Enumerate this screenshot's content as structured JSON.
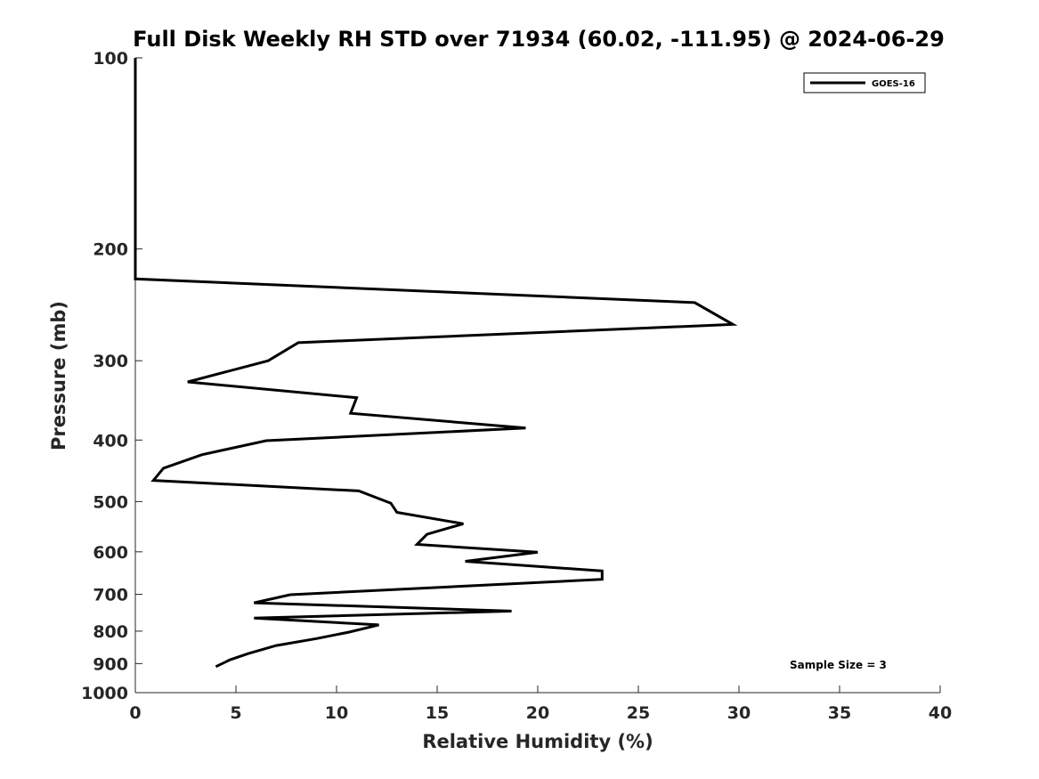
{
  "chart_data": {
    "type": "line",
    "title": "Full Disk Weekly RH STD over 71934 (60.02, -111.95) @ 2024-06-29",
    "xlabel": "Relative Humidity (%)",
    "ylabel": "Pressure (mb)",
    "xlim": [
      0,
      40
    ],
    "ylim": [
      1000,
      100
    ],
    "yscale": "log",
    "xticks": [
      "0",
      "5",
      "10",
      "15",
      "20",
      "25",
      "30",
      "35",
      "40"
    ],
    "yticks": [
      "100",
      "200",
      "300",
      "400",
      "500",
      "600",
      "700",
      "800",
      "900",
      "1000"
    ],
    "grid": false,
    "legend_position": "top-right",
    "annotation": "Sample Size = 3",
    "series": [
      {
        "name": "GOES-16",
        "color": "#000000",
        "x": [
          0,
          0,
          27.8,
          29.7,
          8.1,
          6.6,
          2.6,
          11.0,
          10.7,
          19.4,
          6.5,
          3.3,
          1.4,
          0.9,
          11.1,
          12.7,
          13.0,
          16.3,
          14.5,
          14.0,
          20.0,
          16.4,
          23.2,
          23.2,
          7.7,
          5.9,
          18.7,
          5.9,
          12.1,
          10.6,
          9.0,
          7.0,
          5.6,
          4.7,
          4.0
        ],
        "y": [
          100,
          223,
          243,
          263,
          281,
          300,
          324,
          343,
          363,
          383,
          401,
          422,
          443,
          463,
          481,
          503,
          520,
          542,
          563,
          584,
          601,
          621,
          643,
          663,
          701,
          722,
          744,
          763,
          782,
          803,
          822,
          843,
          868,
          888,
          910
        ]
      }
    ]
  }
}
